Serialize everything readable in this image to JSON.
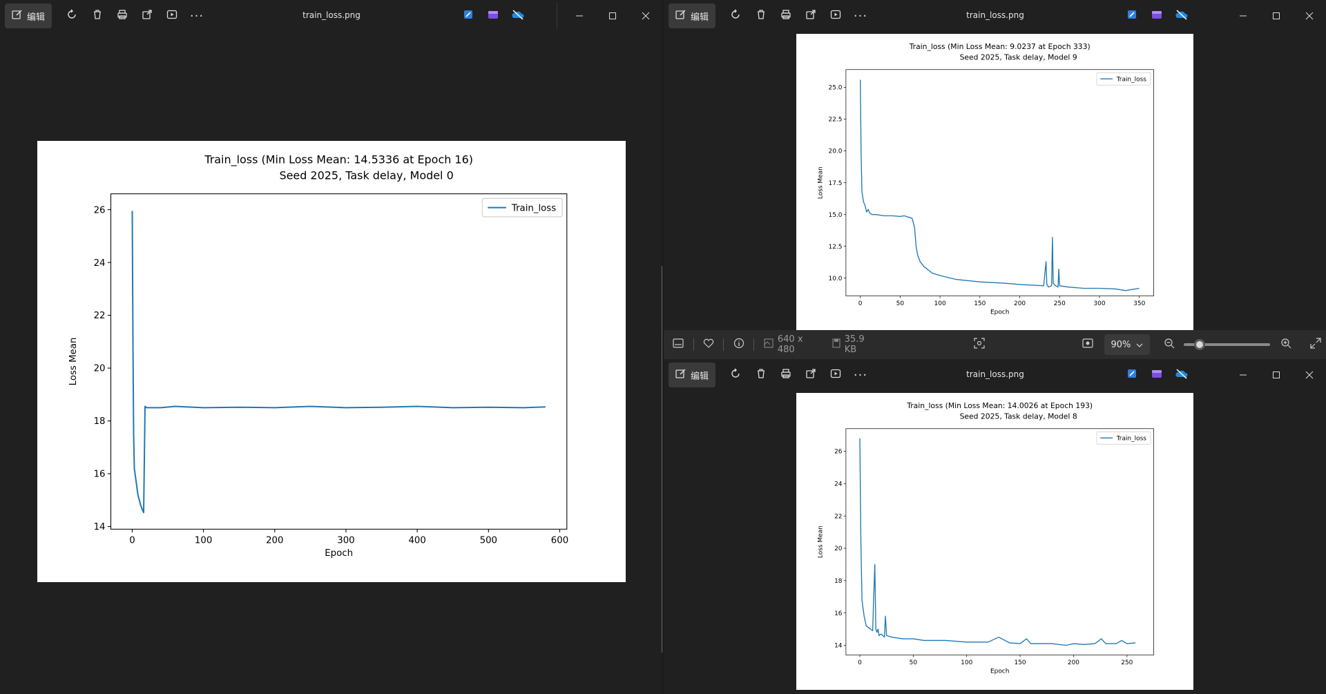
{
  "toolbar": {
    "edit_label": "编辑",
    "file_title": "train_loss.png"
  },
  "statusbar": {
    "dimensions": "640 x 480",
    "file_size": "35.9 KB",
    "zoom": "90%",
    "zoom_fraction": 0.13
  },
  "colors": {
    "series": "#1f77b4",
    "background": "#202020",
    "accent": "#4aa0ff"
  },
  "chart_data": [
    {
      "type": "line",
      "title": "Train_loss (Min Loss Mean: 14.5336 at Epoch 16)",
      "subtitle": "Seed 2025, Task delay, Model 0",
      "xlabel": "Epoch",
      "ylabel": "Loss Mean",
      "xlim": [
        -30,
        610
      ],
      "ylim": [
        13.9,
        26.6
      ],
      "xticks": [
        0,
        100,
        200,
        300,
        400,
        500,
        600
      ],
      "yticks": [
        14,
        16,
        18,
        20,
        22,
        24,
        26
      ],
      "ytick_labels": [
        "14",
        "16",
        "18",
        "20",
        "22",
        "24",
        "26"
      ],
      "legend": "top-right",
      "series": [
        {
          "name": "Train_loss",
          "x": [
            0,
            1,
            2,
            3,
            5,
            8,
            10,
            12,
            14,
            16,
            17,
            18,
            20,
            40,
            60,
            100,
            150,
            200,
            250,
            300,
            350,
            400,
            450,
            500,
            550,
            580
          ],
          "y": [
            25.95,
            21.0,
            17.5,
            16.2,
            15.8,
            15.2,
            15.0,
            14.8,
            14.65,
            14.53,
            16.5,
            18.55,
            18.5,
            18.5,
            18.55,
            18.5,
            18.52,
            18.5,
            18.55,
            18.5,
            18.52,
            18.55,
            18.5,
            18.52,
            18.5,
            18.53
          ]
        }
      ]
    },
    {
      "type": "line",
      "title": "Train_loss (Min Loss Mean: 9.0237 at Epoch 333)",
      "subtitle": "Seed 2025, Task delay, Model 9",
      "xlabel": "Epoch",
      "ylabel": "Loss Mean",
      "xlim": [
        -18,
        368
      ],
      "ylim": [
        8.6,
        26.4
      ],
      "xticks": [
        0,
        50,
        100,
        150,
        200,
        250,
        300,
        350
      ],
      "yticks": [
        10,
        12.5,
        15,
        17.5,
        20,
        22.5,
        25
      ],
      "ytick_labels": [
        "10.0",
        "12.5",
        "15.0",
        "17.5",
        "20.0",
        "22.5",
        "25.0"
      ],
      "legend": "top-right",
      "series": [
        {
          "name": "Train_loss",
          "x": [
            0,
            1,
            2,
            4,
            6,
            8,
            10,
            12,
            15,
            20,
            30,
            40,
            50,
            55,
            60,
            65,
            68,
            70,
            72,
            75,
            80,
            90,
            100,
            120,
            150,
            180,
            200,
            230,
            233,
            234,
            236,
            240,
            241,
            242,
            245,
            248,
            249,
            250,
            260,
            280,
            300,
            320,
            333,
            340,
            350
          ],
          "y": [
            25.6,
            20.0,
            16.8,
            16.0,
            15.7,
            15.2,
            15.4,
            15.1,
            15.0,
            15.0,
            14.9,
            14.9,
            14.85,
            14.9,
            14.8,
            14.7,
            14.0,
            12.5,
            11.8,
            11.3,
            10.9,
            10.4,
            10.2,
            9.9,
            9.7,
            9.6,
            9.5,
            9.4,
            11.3,
            9.5,
            9.3,
            9.4,
            13.2,
            9.6,
            9.4,
            9.3,
            10.7,
            9.4,
            9.3,
            9.2,
            9.2,
            9.15,
            9.02,
            9.1,
            9.2
          ]
        }
      ]
    },
    {
      "type": "line",
      "title": "Train_loss (Min Loss Mean: 14.0026 at Epoch 193)",
      "subtitle": "Seed 2025, Task delay, Model 8",
      "xlabel": "Epoch",
      "ylabel": "Loss Mean",
      "xlim": [
        -13,
        275
      ],
      "ylim": [
        13.4,
        27.4
      ],
      "xticks": [
        0,
        50,
        100,
        150,
        200,
        250
      ],
      "yticks": [
        14,
        16,
        18,
        20,
        22,
        24,
        26
      ],
      "ytick_labels": [
        "14",
        "16",
        "18",
        "20",
        "22",
        "24",
        "26"
      ],
      "legend": "top-right",
      "series": [
        {
          "name": "Train_loss",
          "x": [
            0,
            1,
            2,
            4,
            6,
            8,
            10,
            12,
            13,
            14,
            15,
            16,
            17,
            18,
            20,
            23,
            24,
            25,
            30,
            40,
            50,
            60,
            70,
            80,
            100,
            120,
            130,
            140,
            150,
            156,
            160,
            170,
            180,
            193,
            200,
            210,
            220,
            226,
            230,
            240,
            245,
            250,
            258
          ],
          "y": [
            26.8,
            20.5,
            16.8,
            15.8,
            15.2,
            15.1,
            15.0,
            14.9,
            17.0,
            19.0,
            15.0,
            14.8,
            15.0,
            14.6,
            14.7,
            14.5,
            15.8,
            14.6,
            14.5,
            14.4,
            14.4,
            14.3,
            14.3,
            14.3,
            14.2,
            14.2,
            14.5,
            14.15,
            14.1,
            14.4,
            14.1,
            14.1,
            14.1,
            14.0,
            14.1,
            14.05,
            14.1,
            14.4,
            14.1,
            14.1,
            14.3,
            14.1,
            14.15
          ]
        }
      ]
    }
  ]
}
